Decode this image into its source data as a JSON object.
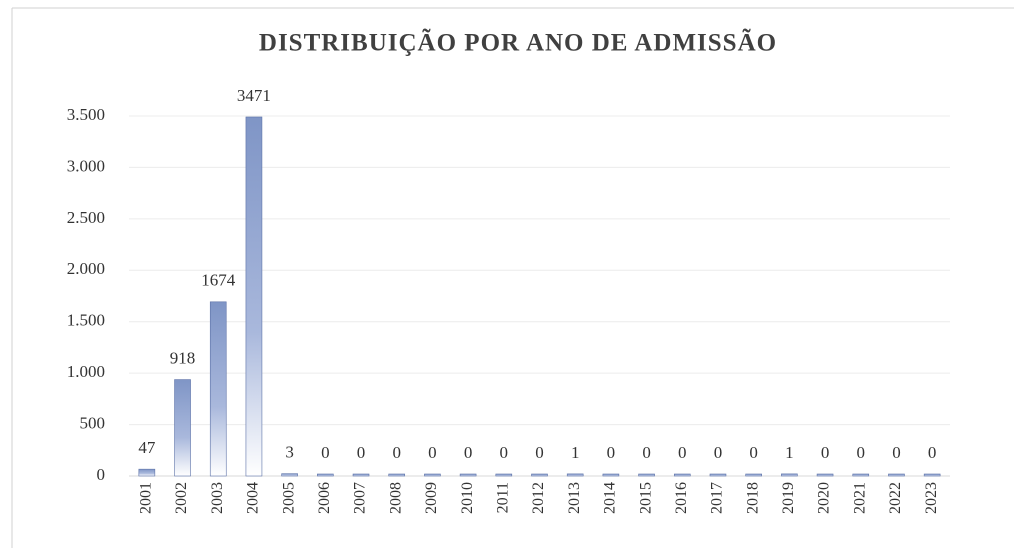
{
  "chart_data": {
    "type": "bar",
    "title": "DISTRIBUIÇÃO POR ANO DE ADMISSÃO",
    "categories": [
      "2001",
      "2002",
      "2003",
      "2004",
      "2005",
      "2006",
      "2007",
      "2008",
      "2009",
      "2010",
      "2011",
      "2012",
      "2013",
      "2014",
      "2015",
      "2016",
      "2017",
      "2018",
      "2019",
      "2020",
      "2021",
      "2022",
      "2023"
    ],
    "values": [
      47,
      918,
      1674,
      3471,
      3,
      0,
      0,
      0,
      0,
      0,
      0,
      0,
      1,
      0,
      0,
      0,
      0,
      0,
      1,
      0,
      0,
      0,
      0
    ],
    "color": "#7f95c6",
    "ylim": [
      0,
      3500
    ],
    "yticks": [
      0,
      500,
      {
        "value": 1000,
        "label": "1.000"
      },
      {
        "value": 1500,
        "label": "1.500"
      },
      {
        "value": 2000,
        "label": "2.000"
      },
      {
        "value": 2500,
        "label": "2.500"
      },
      {
        "value": 3000,
        "label": "3.000"
      },
      {
        "value": 3500,
        "label": "3.500"
      }
    ],
    "grid": true
  }
}
